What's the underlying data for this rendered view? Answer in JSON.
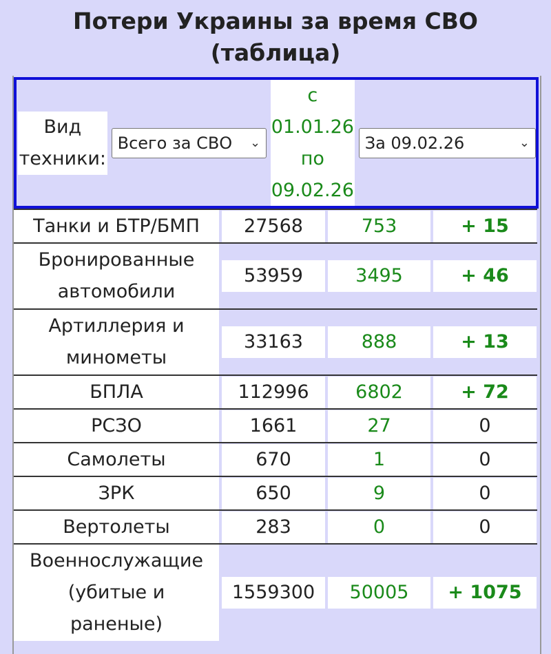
{
  "title_line1": "Потери Украины за время СВО",
  "title_line2": "(таблица)",
  "filter": {
    "label_line1": "Вид",
    "label_line2": "техники:",
    "type_select": "Всего за СВО",
    "date_from_prefix": "с",
    "date_from": "01.01.26",
    "date_to_prefix": "по",
    "date_to": "09.02.26",
    "day_select": "За 09.02.26"
  },
  "rows": [
    {
      "name": [
        "Танки и БТР/БМП"
      ],
      "total": "27568",
      "period": "753",
      "day": "+ 15"
    },
    {
      "name": [
        "Бронированные",
        "автомобили"
      ],
      "total": "53959",
      "period": "3495",
      "day": "+ 46"
    },
    {
      "name": [
        "Артиллерия и",
        "минометы"
      ],
      "total": "33163",
      "period": "888",
      "day": "+ 13"
    },
    {
      "name": [
        "БПЛА"
      ],
      "total": "112996",
      "period": "6802",
      "day": "+ 72"
    },
    {
      "name": [
        "РСЗО"
      ],
      "total": "1661",
      "period": "27",
      "day": "0"
    },
    {
      "name": [
        "Самолеты"
      ],
      "total": "670",
      "period": "1",
      "day": "0"
    },
    {
      "name": [
        "ЗРК"
      ],
      "total": "650",
      "period": "9",
      "day": "0"
    },
    {
      "name": [
        "Вертолеты"
      ],
      "total": "283",
      "period": "0",
      "day": "0"
    },
    {
      "name": [
        "Военнослужащие",
        "(убитые и",
        "раненые)"
      ],
      "total": "1559300",
      "period": "50005",
      "day": "+ 1075"
    }
  ],
  "colors": {
    "accent_green": "#1a8a1a",
    "header_border": "#1010d8",
    "background": "#d9d8fa"
  }
}
